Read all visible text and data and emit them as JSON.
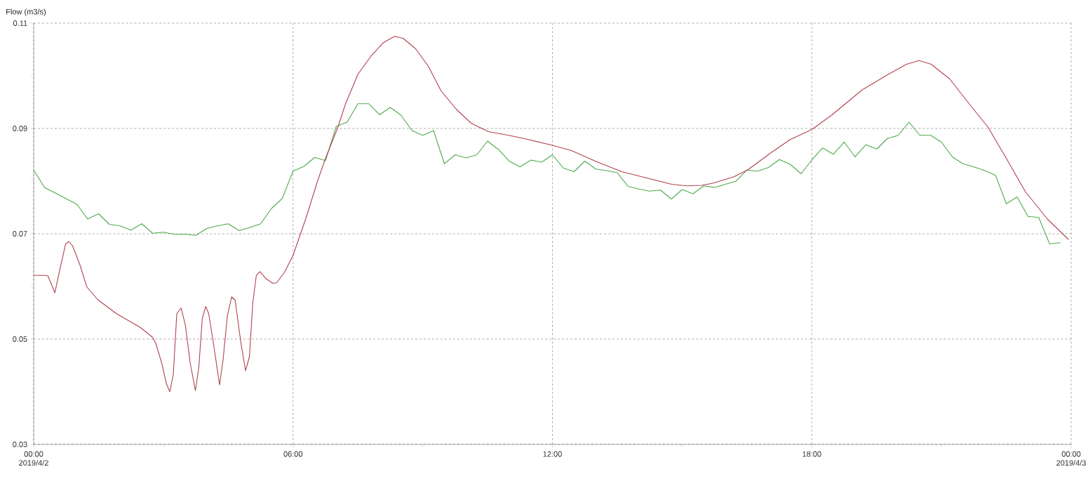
{
  "chart_data": {
    "type": "line",
    "ylabel": "Flow (m3/s)",
    "annotations": [
      "2019/4/2",
      "2019/4/3"
    ],
    "xlim": [
      0,
      24
    ],
    "ylim": [
      0.03,
      0.11
    ],
    "xticks": [
      {
        "value": 0,
        "label": "00:00"
      },
      {
        "value": 3,
        "label": null
      },
      {
        "value": 6,
        "label": "06:00"
      },
      {
        "value": 9,
        "label": null
      },
      {
        "value": 12,
        "label": "12:00"
      },
      {
        "value": 15,
        "label": null
      },
      {
        "value": 18,
        "label": "18:00"
      },
      {
        "value": 21,
        "label": null
      },
      {
        "value": 24,
        "label": "00:00"
      }
    ],
    "yticks": [
      0.03,
      {
        "value": 0.04,
        "label": null
      },
      0.05,
      {
        "value": 0.06,
        "label": null
      },
      0.07,
      {
        "value": 0.08,
        "label": null
      },
      0.09,
      {
        "value": 0.1,
        "label": null
      },
      0.11
    ],
    "grid": true,
    "marker": "none",
    "line_style": "solid",
    "series": [
      {
        "color": "#4daa4d",
        "x": [
          0,
          0.25,
          1.0,
          1.25,
          1.5,
          1.75,
          2.0,
          2.25,
          2.5,
          2.75,
          3.0,
          3.25,
          3.5,
          3.75,
          4.0,
          4.25,
          4.5,
          4.75,
          5.0,
          5.25,
          5.5,
          5.75,
          6.0,
          6.25,
          6.5,
          6.75,
          7.0,
          7.25,
          7.5,
          7.75,
          8.0,
          8.25,
          8.5,
          8.75,
          9.0,
          9.25,
          9.5,
          9.75,
          10.0,
          10.25,
          10.5,
          10.75,
          11.0,
          11.25,
          11.5,
          11.75,
          12.0,
          12.25,
          12.5,
          12.75,
          13.0,
          13.25,
          13.5,
          13.75,
          14.0,
          14.25,
          14.5,
          14.75,
          15.0,
          15.25,
          15.5,
          15.75,
          16.25,
          16.5,
          16.75,
          17.0,
          17.25,
          17.5,
          17.75,
          18.0,
          18.25,
          18.5,
          18.75,
          19.0,
          19.25,
          19.5,
          19.75,
          20.0,
          20.25,
          20.5,
          20.75,
          21.0,
          21.25,
          21.5,
          21.75,
          22.0,
          22.25,
          22.5,
          22.75,
          23.0,
          23.25,
          23.5,
          23.75
        ],
        "values": [
          0.0821,
          0.0788,
          0.0756,
          0.0728,
          0.0738,
          0.0718,
          0.0715,
          0.0707,
          0.0719,
          0.0701,
          0.0703,
          0.0699,
          0.0699,
          0.0697,
          0.071,
          0.0715,
          0.0719,
          0.0706,
          0.0712,
          0.0719,
          0.0748,
          0.0767,
          0.0819,
          0.0828,
          0.0845,
          0.0839,
          0.0904,
          0.0912,
          0.0947,
          0.0947,
          0.0926,
          0.094,
          0.0925,
          0.0896,
          0.0887,
          0.0896,
          0.0833,
          0.085,
          0.0844,
          0.085,
          0.0876,
          0.086,
          0.0838,
          0.0827,
          0.084,
          0.0836,
          0.085,
          0.0825,
          0.0818,
          0.0838,
          0.0823,
          0.082,
          0.0816,
          0.079,
          0.0785,
          0.0781,
          0.0783,
          0.0766,
          0.0784,
          0.0776,
          0.0791,
          0.0788,
          0.08,
          0.0821,
          0.0819,
          0.0826,
          0.0841,
          0.0832,
          0.0814,
          0.084,
          0.0863,
          0.0851,
          0.0874,
          0.0846,
          0.0869,
          0.0861,
          0.0881,
          0.0887,
          0.0912,
          0.0887,
          0.0887,
          0.0874,
          0.0846,
          0.0833,
          0.0827,
          0.082,
          0.0811,
          0.0757,
          0.077,
          0.0733,
          0.0731,
          0.0681,
          0.0683
        ]
      },
      {
        "color": "#b0424f",
        "x": [
          0,
          0.25,
          0.33,
          0.49,
          0.63,
          0.74,
          0.82,
          0.9,
          1.07,
          1.23,
          1.48,
          1.92,
          2.47,
          2.74,
          2.82,
          2.96,
          3.07,
          3.15,
          3.23,
          3.31,
          3.41,
          3.51,
          3.62,
          3.74,
          3.82,
          3.9,
          3.98,
          4.05,
          4.16,
          4.3,
          4.38,
          4.48,
          4.58,
          4.66,
          4.79,
          4.9,
          4.99,
          5.07,
          5.15,
          5.23,
          5.37,
          5.53,
          5.62,
          5.81,
          6.0,
          6.3,
          6.57,
          6.74,
          7.04,
          7.21,
          7.5,
          7.8,
          8.09,
          8.35,
          8.55,
          8.84,
          9.13,
          9.42,
          9.77,
          10.12,
          10.52,
          10.99,
          11.39,
          12.0,
          12.44,
          13.02,
          13.6,
          14.18,
          14.76,
          15.1,
          15.45,
          15.71,
          16.19,
          16.53,
          17.04,
          17.5,
          18.0,
          18.47,
          19.16,
          19.73,
          20.19,
          20.48,
          20.76,
          21.19,
          21.62,
          22.08,
          22.48,
          22.94,
          23.45,
          23.94
        ],
        "values": [
          0.0621,
          0.0621,
          0.062,
          0.0588,
          0.0641,
          0.0681,
          0.0685,
          0.0677,
          0.0641,
          0.0599,
          0.0575,
          0.0548,
          0.0522,
          0.0504,
          0.0493,
          0.0455,
          0.0415,
          0.04,
          0.0433,
          0.0548,
          0.0559,
          0.0526,
          0.0455,
          0.0402,
          0.0446,
          0.0539,
          0.0562,
          0.0548,
          0.0491,
          0.0413,
          0.046,
          0.0544,
          0.058,
          0.0574,
          0.0495,
          0.044,
          0.0466,
          0.057,
          0.0621,
          0.0628,
          0.0615,
          0.0606,
          0.0607,
          0.0628,
          0.0659,
          0.073,
          0.0801,
          0.0841,
          0.0903,
          0.0946,
          0.1003,
          0.1037,
          0.1063,
          0.1075,
          0.1071,
          0.1051,
          0.1018,
          0.0972,
          0.0937,
          0.091,
          0.0894,
          0.0887,
          0.088,
          0.0868,
          0.0858,
          0.0837,
          0.0818,
          0.0806,
          0.0794,
          0.0791,
          0.0792,
          0.0796,
          0.0808,
          0.0822,
          0.0853,
          0.0879,
          0.0898,
          0.0926,
          0.0973,
          0.1001,
          0.1022,
          0.1029,
          0.1022,
          0.0994,
          0.0949,
          0.0902,
          0.0846,
          0.078,
          0.0728,
          0.0689
        ]
      }
    ]
  }
}
